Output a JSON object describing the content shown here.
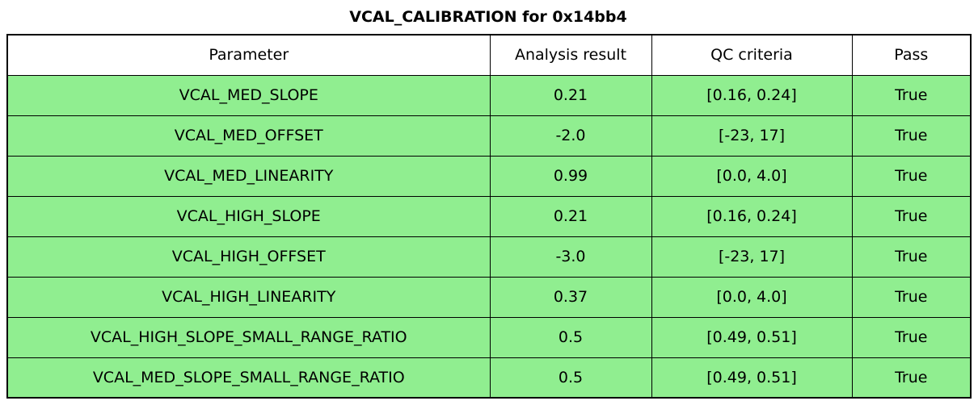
{
  "colors": {
    "pass_row_bg": "#90ee90",
    "header_bg": "#ffffff",
    "border": "#000000"
  },
  "chart_data": {
    "type": "table",
    "title": "VCAL_CALIBRATION for 0x14bb4",
    "columns": [
      "Parameter",
      "Analysis result",
      "QC criteria",
      "Pass"
    ],
    "rows": [
      [
        "VCAL_MED_SLOPE",
        "0.21",
        "[0.16, 0.24]",
        "True"
      ],
      [
        "VCAL_MED_OFFSET",
        "-2.0",
        "[-23, 17]",
        "True"
      ],
      [
        "VCAL_MED_LINEARITY",
        "0.99",
        "[0.0, 4.0]",
        "True"
      ],
      [
        "VCAL_HIGH_SLOPE",
        "0.21",
        "[0.16, 0.24]",
        "True"
      ],
      [
        "VCAL_HIGH_OFFSET",
        "-3.0",
        "[-23, 17]",
        "True"
      ],
      [
        "VCAL_HIGH_LINEARITY",
        "0.37",
        "[0.0, 4.0]",
        "True"
      ],
      [
        "VCAL_HIGH_SLOPE_SMALL_RANGE_RATIO",
        "0.5",
        "[0.49, 0.51]",
        "True"
      ],
      [
        "VCAL_MED_SLOPE_SMALL_RANGE_RATIO",
        "0.5",
        "[0.49, 0.51]",
        "True"
      ]
    ],
    "layout": {
      "header_row_background": "#ffffff",
      "data_row_background": "#90ee90",
      "grid": "on",
      "title_position": "top-center"
    }
  }
}
